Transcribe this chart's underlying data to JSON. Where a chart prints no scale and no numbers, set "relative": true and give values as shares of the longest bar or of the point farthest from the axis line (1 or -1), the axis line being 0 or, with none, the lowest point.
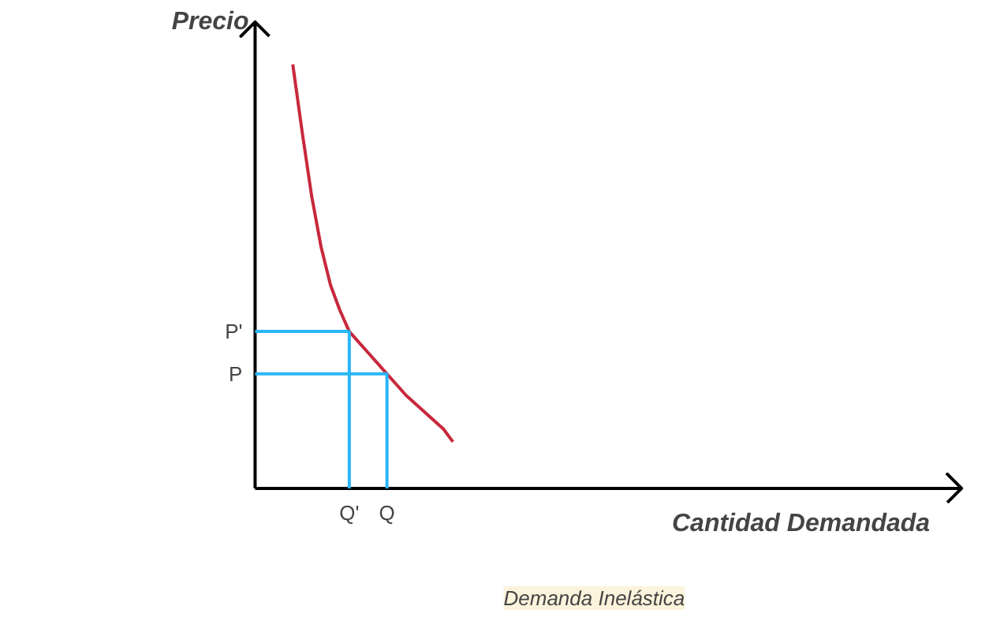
{
  "chart_data": {
    "type": "line",
    "relative": true,
    "ylabel": "Precio",
    "categories": [
      null,
      null,
      null,
      null,
      null,
      null,
      "Q'",
      null,
      null,
      null,
      "Q",
      null,
      null,
      null,
      null,
      null,
      null,
      null
    ],
    "series": [
      {
        "color": "#c8283c",
        "values": [
          1,
          0.84,
          0.69,
          0.57,
          0.48,
          0.42,
          0.37,
          0.345,
          0.32,
          0.295,
          0.27,
          0.245,
          0.22,
          0.2,
          0.18,
          0.16,
          0.14,
          0.11
        ]
      }
    ],
    "ref_lines": [
      {
        "axis": "y",
        "value": 0.37,
        "label": "P'",
        "color": "#29b6f6"
      },
      {
        "axis": "y",
        "value": 0.27,
        "label": "P",
        "color": "#29b6f6"
      }
    ],
    "annotations": [
      "Cantidad Demandada",
      "Demanda Inelástica"
    ],
    "grid": false
  }
}
